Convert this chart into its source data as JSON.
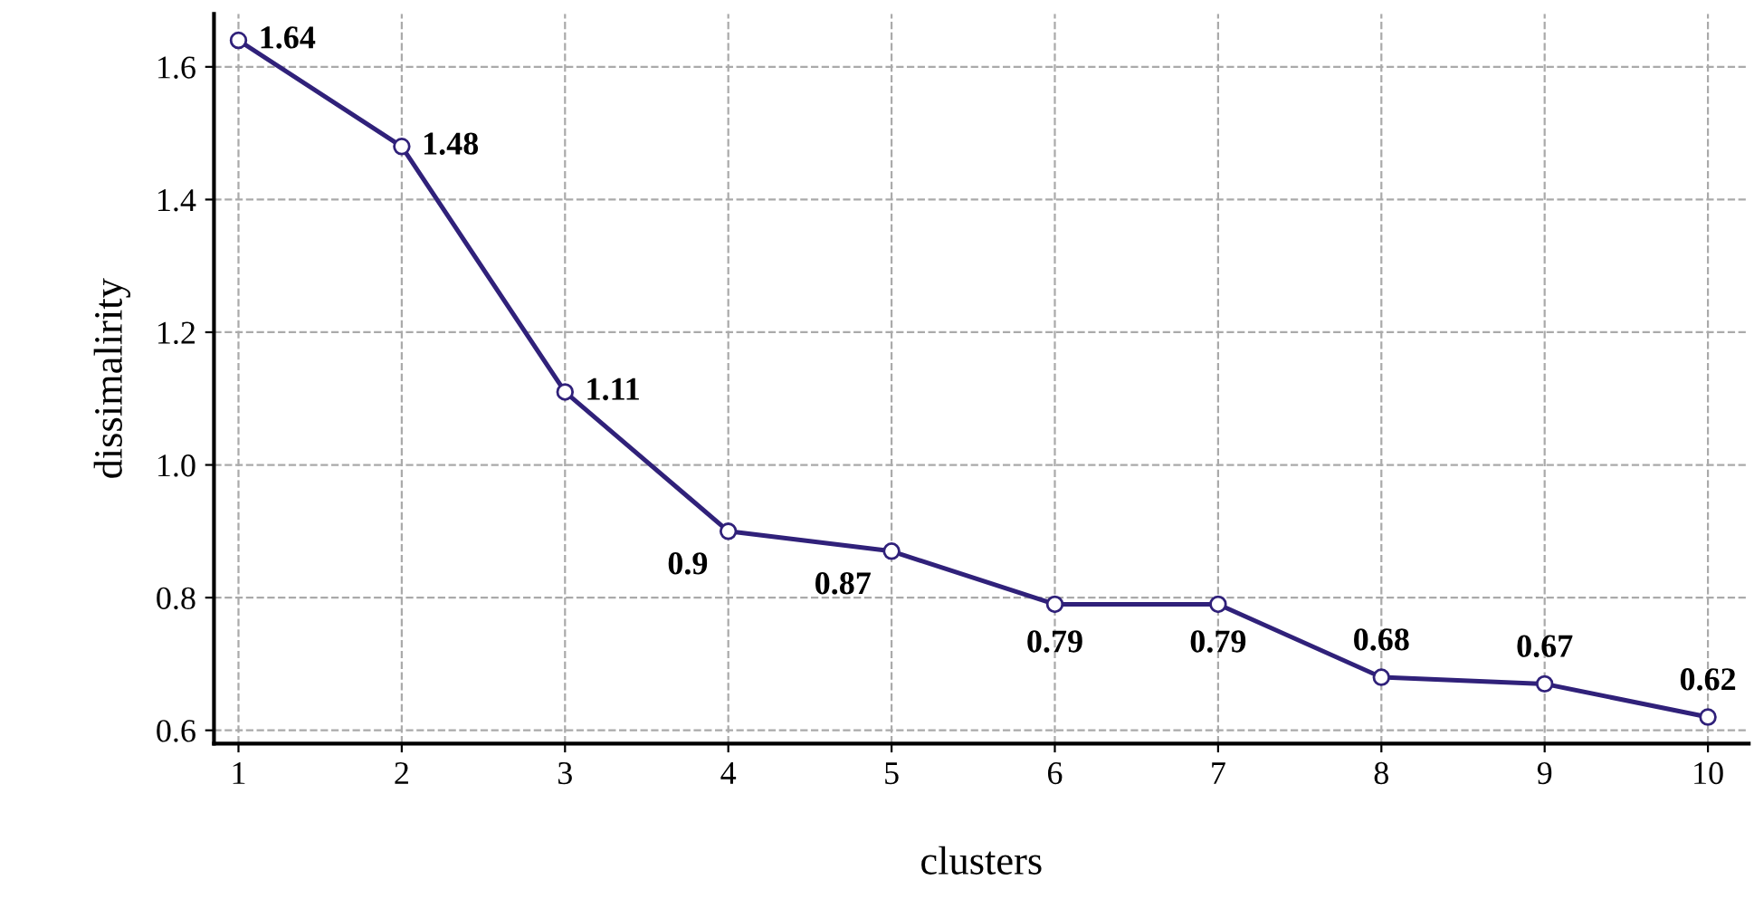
{
  "chart_data": {
    "type": "line",
    "xlabel": "clusters",
    "ylabel": "dissimalirity",
    "x": [
      1,
      2,
      3,
      4,
      5,
      6,
      7,
      8,
      9,
      10
    ],
    "series": [
      {
        "color": "#30217a",
        "values": [
          1.64,
          1.48,
          1.11,
          0.9,
          0.87,
          0.79,
          0.79,
          0.68,
          0.67,
          0.62
        ]
      }
    ],
    "xlim": [
      0.85,
      10.25
    ],
    "ylim": [
      0.58,
      1.68
    ],
    "xticks": [
      1,
      2,
      3,
      4,
      5,
      6,
      7,
      8,
      9,
      10
    ],
    "yticks": [
      0.6,
      0.8,
      {
        "value": 1,
        "label": "1.0"
      },
      1.2,
      1.4,
      1.6
    ],
    "grid": true,
    "marker": "circle",
    "line_style": "solid",
    "data_labels": true
  }
}
